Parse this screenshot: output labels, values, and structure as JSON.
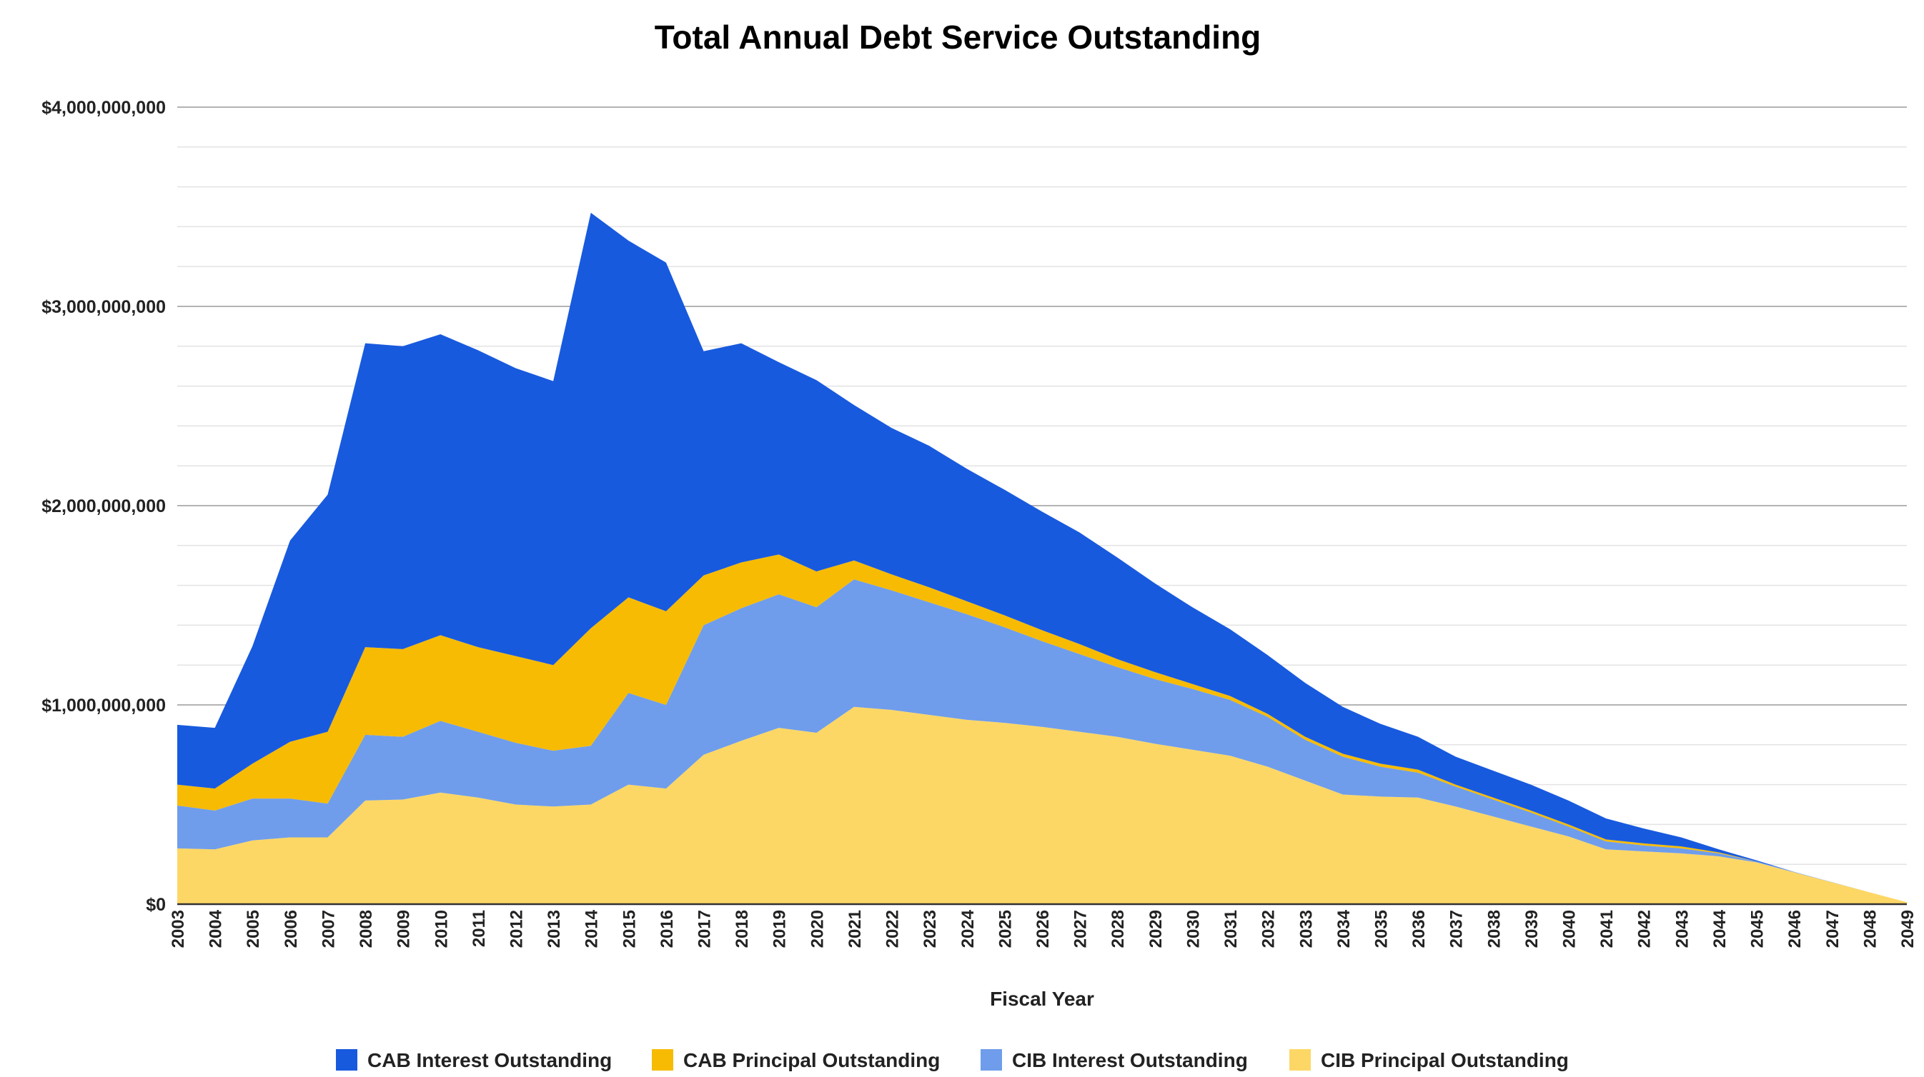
{
  "chart_data": {
    "type": "area",
    "stacked": true,
    "title": "Total Annual Debt Service Outstanding",
    "xlabel": "Fiscal Year",
    "ylabel": "",
    "ylim": [
      0,
      4000000000
    ],
    "y_ticks": [
      {
        "value": 0,
        "label": "$0"
      },
      {
        "value": 1000000000,
        "label": "$1,000,000,000"
      },
      {
        "value": 2000000000,
        "label": "$2,000,000,000"
      },
      {
        "value": 3000000000,
        "label": "$3,000,000,000"
      },
      {
        "value": 4000000000,
        "label": "$4,000,000,000"
      }
    ],
    "grid": true,
    "legend_position": "bottom",
    "x": [
      2003,
      2004,
      2005,
      2006,
      2007,
      2008,
      2009,
      2010,
      2011,
      2012,
      2013,
      2014,
      2015,
      2016,
      2017,
      2018,
      2019,
      2020,
      2021,
      2022,
      2023,
      2024,
      2025,
      2026,
      2027,
      2028,
      2029,
      2030,
      2031,
      2032,
      2033,
      2034,
      2035,
      2036,
      2037,
      2038,
      2039,
      2040,
      2041,
      2042,
      2043,
      2044,
      2045,
      2046,
      2047,
      2048,
      2049
    ],
    "series": [
      {
        "name": "CIB Principal Outstanding",
        "color": "#fdd766",
        "values": [
          280000000,
          275000000,
          320000000,
          335000000,
          335000000,
          520000000,
          525000000,
          560000000,
          535000000,
          500000000,
          490000000,
          500000000,
          600000000,
          580000000,
          750000000,
          820000000,
          885000000,
          860000000,
          990000000,
          975000000,
          950000000,
          925000000,
          910000000,
          890000000,
          865000000,
          840000000,
          805000000,
          775000000,
          745000000,
          690000000,
          620000000,
          550000000,
          540000000,
          535000000,
          490000000,
          440000000,
          390000000,
          340000000,
          275000000,
          265000000,
          255000000,
          240000000,
          210000000,
          160000000,
          110000000,
          60000000,
          10000000
        ]
      },
      {
        "name": "CIB Interest Outstanding",
        "color": "#6f9deb",
        "values": [
          215000000,
          195000000,
          210000000,
          195000000,
          170000000,
          330000000,
          315000000,
          360000000,
          330000000,
          310000000,
          280000000,
          295000000,
          460000000,
          420000000,
          650000000,
          665000000,
          670000000,
          630000000,
          640000000,
          600000000,
          565000000,
          530000000,
          480000000,
          430000000,
          390000000,
          350000000,
          325000000,
          305000000,
          280000000,
          250000000,
          205000000,
          190000000,
          150000000,
          125000000,
          100000000,
          85000000,
          70000000,
          50000000,
          40000000,
          30000000,
          25000000,
          15000000,
          5000000,
          2000000,
          1000000,
          0,
          0
        ]
      },
      {
        "name": "CAB Principal Outstanding",
        "color": "#f7bb04",
        "values": [
          105000000,
          110000000,
          175000000,
          285000000,
          360000000,
          440000000,
          440000000,
          430000000,
          425000000,
          435000000,
          430000000,
          590000000,
          480000000,
          470000000,
          250000000,
          230000000,
          200000000,
          180000000,
          95000000,
          80000000,
          75000000,
          65000000,
          60000000,
          55000000,
          50000000,
          40000000,
          35000000,
          25000000,
          20000000,
          15000000,
          15000000,
          15000000,
          15000000,
          15000000,
          10000000,
          10000000,
          10000000,
          10000000,
          10000000,
          10000000,
          10000000,
          5000000,
          0,
          0,
          0,
          0,
          0
        ]
      },
      {
        "name": "CAB Interest Outstanding",
        "color": "#185ade",
        "values": [
          300000000,
          305000000,
          590000000,
          1010000000,
          1190000000,
          1525000000,
          1520000000,
          1510000000,
          1490000000,
          1445000000,
          1425000000,
          2085000000,
          1790000000,
          1750000000,
          1125000000,
          1100000000,
          965000000,
          960000000,
          780000000,
          735000000,
          710000000,
          665000000,
          630000000,
          595000000,
          560000000,
          510000000,
          445000000,
          385000000,
          335000000,
          295000000,
          270000000,
          235000000,
          200000000,
          165000000,
          140000000,
          135000000,
          130000000,
          120000000,
          105000000,
          75000000,
          45000000,
          15000000,
          5000000,
          0,
          0,
          0,
          0
        ]
      }
    ],
    "legend": [
      {
        "label": "CAB Interest Outstanding",
        "color": "#185ade"
      },
      {
        "label": "CAB Principal Outstanding",
        "color": "#f7bb04"
      },
      {
        "label": "CIB Interest Outstanding",
        "color": "#6f9deb"
      },
      {
        "label": "CIB Principal Outstanding",
        "color": "#fdd766"
      }
    ]
  }
}
